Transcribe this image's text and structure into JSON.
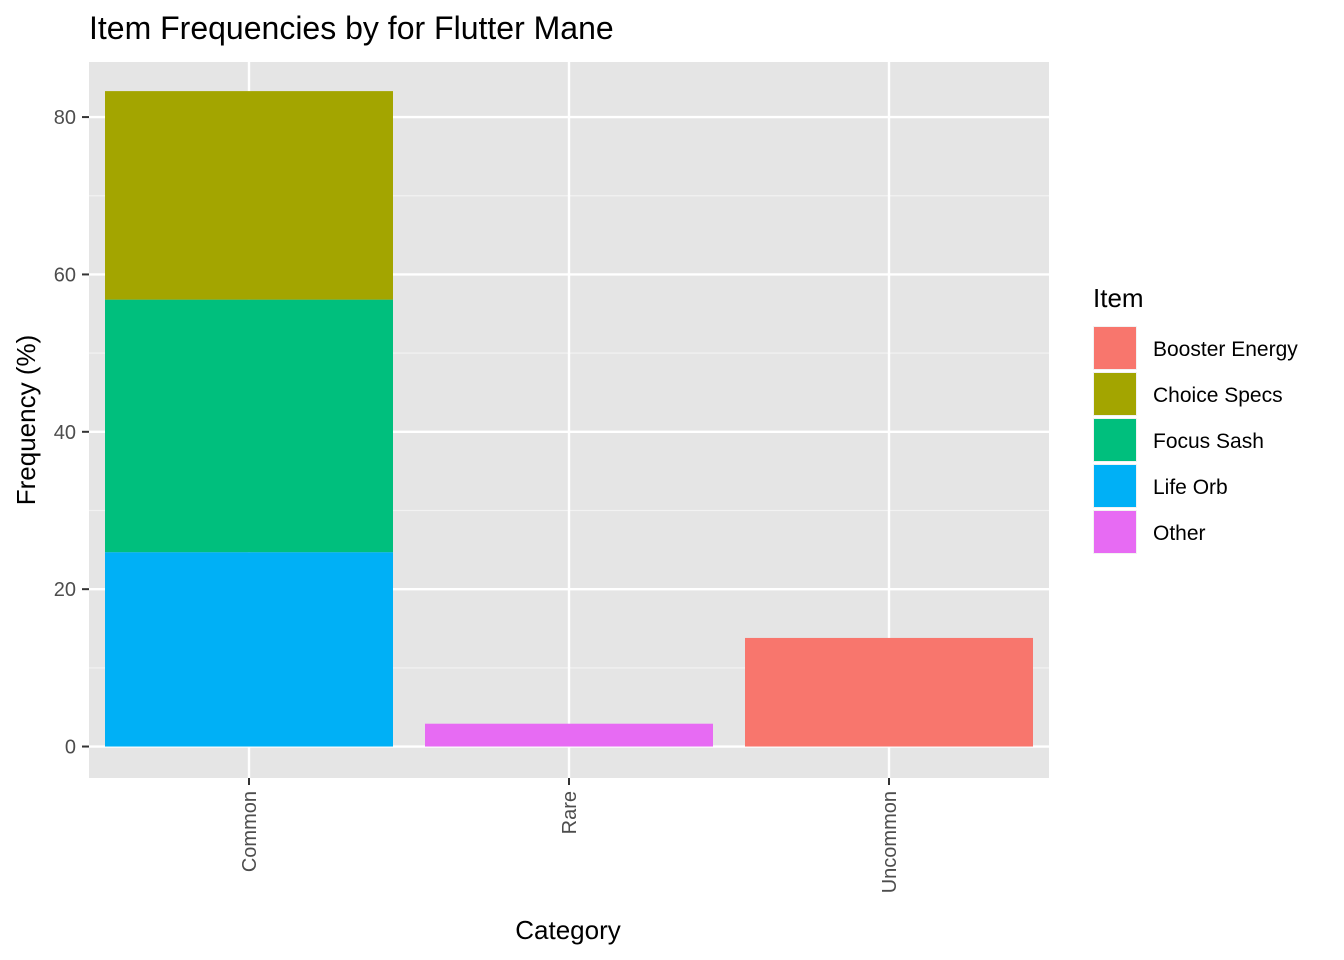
{
  "chart_data": {
    "type": "bar",
    "stacked": true,
    "title": "Item Frequencies by for Flutter Mane",
    "xlabel": "Category",
    "ylabel": "Frequency (%)",
    "categories": [
      "Common",
      "Rare",
      "Uncommon"
    ],
    "ylim": [
      -4,
      87
    ],
    "yticks": [
      0,
      20,
      40,
      60,
      80
    ],
    "grid": true,
    "legend_title": "Item",
    "legend_position": "right",
    "series": [
      {
        "name": "Booster Energy",
        "color": "#F8766D",
        "values": [
          0,
          0,
          13.8
        ]
      },
      {
        "name": "Choice Specs",
        "color": "#A3A500",
        "values": [
          26.5,
          0,
          0
        ]
      },
      {
        "name": "Focus Sash",
        "color": "#00BF7D",
        "values": [
          32.1,
          0,
          0
        ]
      },
      {
        "name": "Life Orb",
        "color": "#00B0F6",
        "values": [
          24.7,
          0,
          0
        ]
      },
      {
        "name": "Other",
        "color": "#E76BF3",
        "values": [
          0,
          2.9,
          0
        ]
      }
    ],
    "stack_order": [
      "Life Orb",
      "Focus Sash",
      "Choice Specs",
      "Booster Energy",
      "Other"
    ]
  }
}
